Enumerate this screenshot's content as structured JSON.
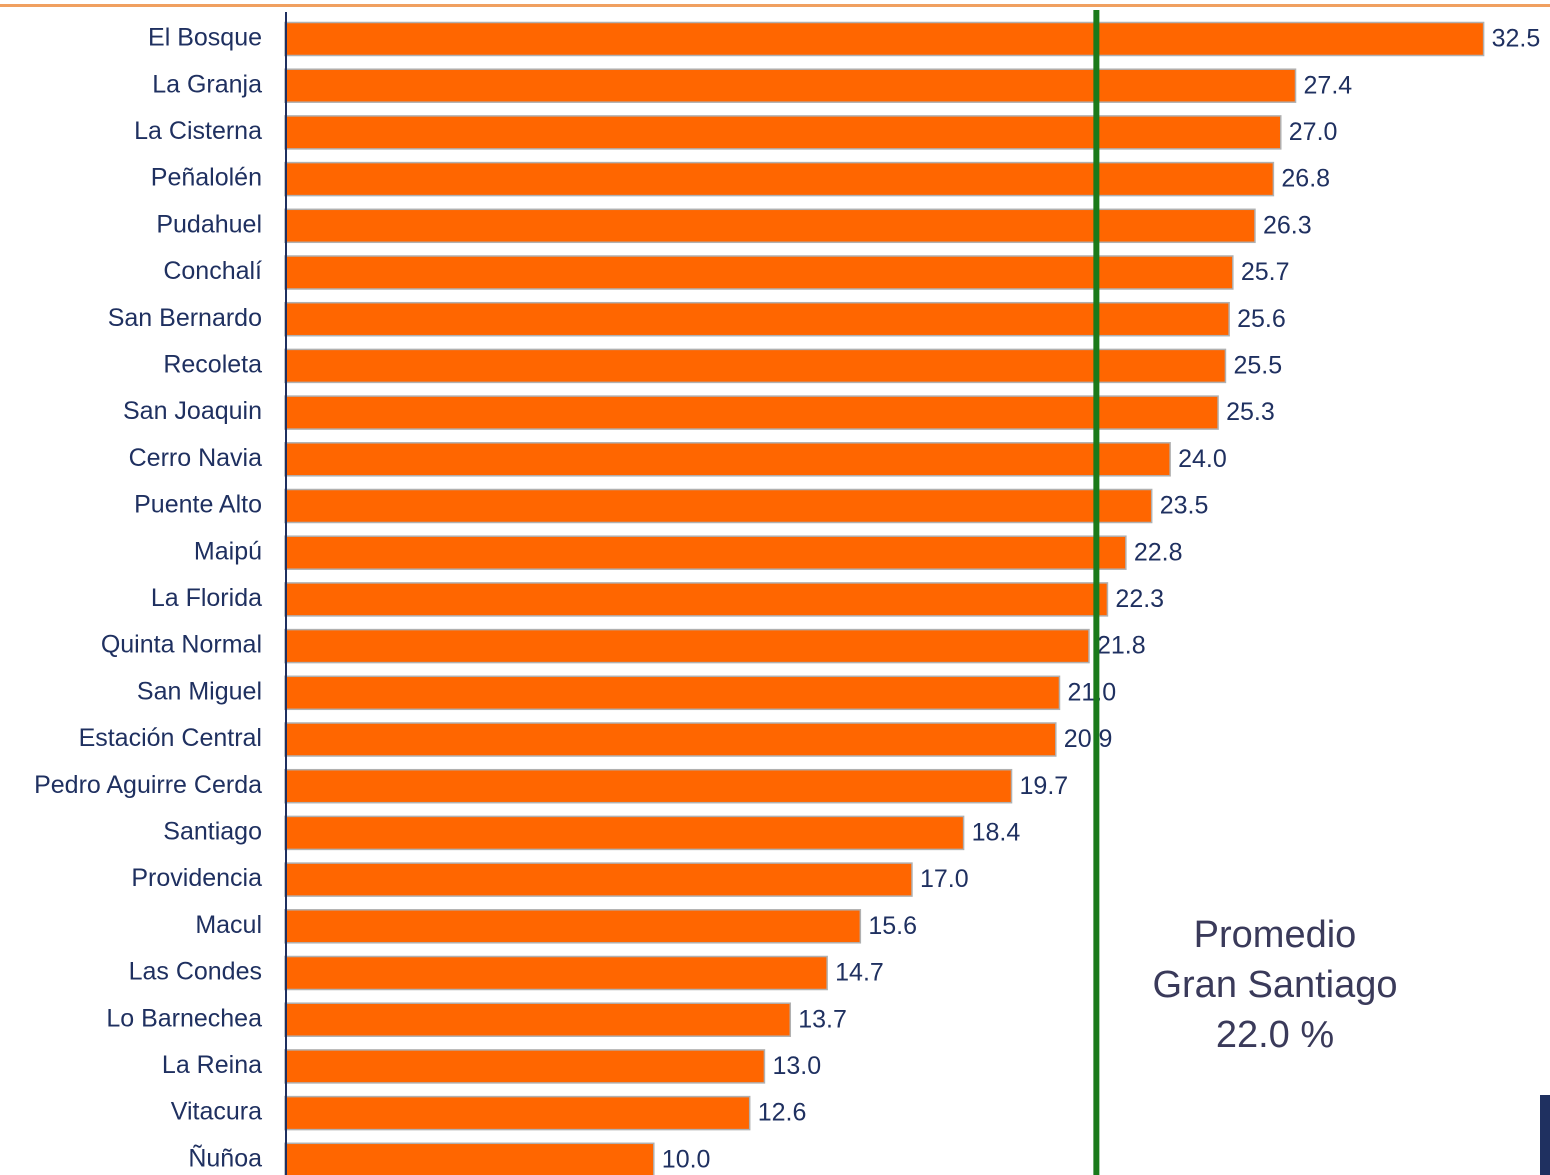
{
  "chart_data": {
    "type": "hbar",
    "categories": [
      "El Bosque",
      "La Granja",
      "La Cisterna",
      "Peñalolén",
      "Pudahuel",
      "Conchalí",
      "San Bernardo",
      "Recoleta",
      "San Joaquin",
      "Cerro Navia",
      "Puente Alto",
      "Maipú",
      "La Florida",
      "Quinta Normal",
      "San Miguel",
      "Estación Central",
      "Pedro Aguirre Cerda",
      "Santiago",
      "Providencia",
      "Macul",
      "Las Condes",
      "Lo Barnechea",
      "La Reina",
      "Vitacura",
      "Ñuñoa"
    ],
    "values": [
      32.5,
      27.4,
      27.0,
      26.8,
      26.3,
      25.7,
      25.6,
      25.5,
      25.3,
      24.0,
      23.5,
      22.8,
      22.3,
      21.8,
      21.0,
      20.9,
      19.7,
      18.4,
      17.0,
      15.6,
      14.7,
      13.7,
      13.0,
      12.6,
      10.0
    ],
    "value_labels": [
      "32.5",
      "27.4",
      "27.0",
      "26.8",
      "26.3",
      "25.7",
      "25.6",
      "25.5",
      "25.3",
      "24.0",
      "23.5",
      "22.8",
      "22.3",
      "21.8",
      "21.0",
      "20.9",
      "19.7",
      "18.4",
      "17.0",
      "15.6",
      "14.7",
      "13.7",
      "13.0",
      "12.6",
      "10.0"
    ],
    "color": "#ff6600",
    "xlim": [
      0,
      34.3
    ],
    "reference_line": {
      "value": 22.0,
      "color": "#1a7a1a"
    },
    "annotation": [
      "Promedio",
      "Gran Santiago",
      "22.0 %"
    ]
  }
}
